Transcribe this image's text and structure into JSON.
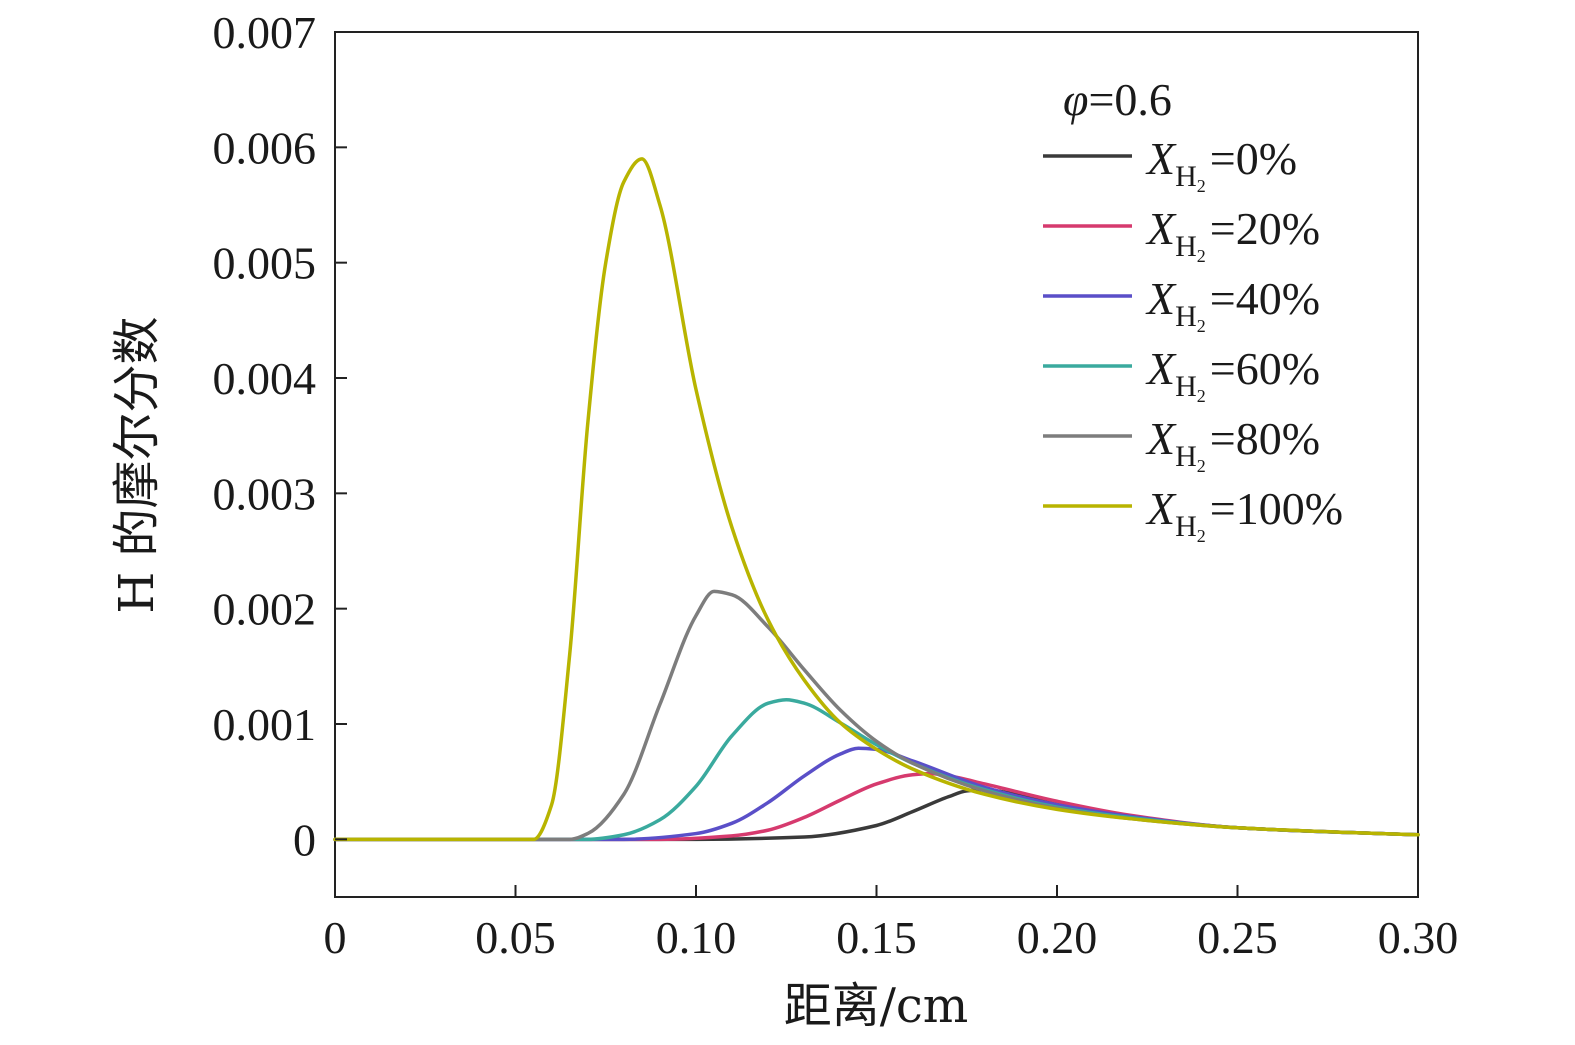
{
  "chart_data": {
    "type": "line",
    "xlabel": "距离/cm",
    "ylabel": "H 的摩尔分数",
    "xlim": [
      0,
      0.3
    ],
    "ylim": [
      -0.0005,
      0.007
    ],
    "x_ticks": [
      0,
      0.05,
      0.1,
      0.15,
      0.2,
      0.25,
      0.3
    ],
    "x_tick_labels": [
      "0",
      "0.05",
      "0.10",
      "0.15",
      "0.20",
      "0.25",
      "0.30"
    ],
    "y_ticks": [
      0,
      0.001,
      0.002,
      0.003,
      0.004,
      0.005,
      0.006,
      0.007
    ],
    "y_tick_labels": [
      "0",
      "0.001",
      "0.002",
      "0.003",
      "0.004",
      "0.005",
      "0.006",
      "0.007"
    ],
    "grid": false,
    "legend": {
      "placement": "top-right",
      "title": "φ=0.6",
      "title_symbol": "φ",
      "title_rest": "=0.6"
    },
    "series": [
      {
        "name": "X_H2=0%",
        "var": "X",
        "sub": "H",
        "sub2": "2",
        "value_text": "=0%",
        "color": "#3a3a3a",
        "x": [
          0,
          0.1,
          0.13,
          0.15,
          0.16,
          0.17,
          0.175,
          0.18,
          0.19,
          0.2,
          0.22,
          0.25,
          0.28,
          0.3
        ],
        "y": [
          0,
          0,
          2e-05,
          0.00012,
          0.00024,
          0.00037,
          0.00042,
          0.00043,
          0.00038,
          0.00031,
          0.0002,
          0.0001,
          6e-05,
          4e-05
        ]
      },
      {
        "name": "X_H2=20%",
        "var": "X",
        "sub": "H",
        "sub2": "2",
        "value_text": "=20%",
        "color": "#d63a6e",
        "x": [
          0,
          0.09,
          0.11,
          0.12,
          0.13,
          0.14,
          0.15,
          0.16,
          0.165,
          0.17,
          0.18,
          0.2,
          0.22,
          0.25,
          0.28,
          0.3
        ],
        "y": [
          0,
          0,
          3e-05,
          8e-05,
          0.00019,
          0.00034,
          0.00048,
          0.00056,
          0.00057,
          0.00055,
          0.00048,
          0.00033,
          0.00021,
          0.0001,
          6e-05,
          4e-05
        ]
      },
      {
        "name": "X_H2=40%",
        "var": "X",
        "sub": "H",
        "sub2": "2",
        "value_text": "=40%",
        "color": "#5a4fc8",
        "x": [
          0,
          0.08,
          0.1,
          0.11,
          0.12,
          0.13,
          0.14,
          0.145,
          0.15,
          0.16,
          0.18,
          0.2,
          0.22,
          0.25,
          0.28,
          0.3
        ],
        "y": [
          0,
          0,
          5e-05,
          0.00014,
          0.00032,
          0.00055,
          0.00074,
          0.00079,
          0.00078,
          0.00068,
          0.00045,
          0.0003,
          0.0002,
          0.0001,
          6e-05,
          4e-05
        ]
      },
      {
        "name": "X_H2=60%",
        "var": "X",
        "sub": "H",
        "sub2": "2",
        "value_text": "=60%",
        "color": "#3aaa9e",
        "x": [
          0,
          0.07,
          0.08,
          0.09,
          0.1,
          0.11,
          0.12,
          0.125,
          0.13,
          0.14,
          0.15,
          0.16,
          0.18,
          0.2,
          0.22,
          0.25,
          0.28,
          0.3
        ],
        "y": [
          0,
          0,
          4e-05,
          0.00017,
          0.00046,
          0.0009,
          0.00118,
          0.00121,
          0.00118,
          0.00101,
          0.00082,
          0.00066,
          0.00043,
          0.00028,
          0.00019,
          0.0001,
          6e-05,
          4e-05
        ]
      },
      {
        "name": "X_H2=80%",
        "var": "X",
        "sub": "H",
        "sub2": "2",
        "value_text": "=80%",
        "color": "#7d7d7d",
        "x": [
          0,
          0.065,
          0.07,
          0.08,
          0.09,
          0.1,
          0.105,
          0.11,
          0.12,
          0.13,
          0.14,
          0.15,
          0.16,
          0.18,
          0.2,
          0.22,
          0.25,
          0.28,
          0.3
        ],
        "y": [
          0,
          0,
          5e-05,
          0.00039,
          0.00117,
          0.00194,
          0.00215,
          0.00212,
          0.00184,
          0.00147,
          0.00112,
          0.00085,
          0.00066,
          0.00042,
          0.00027,
          0.00018,
          0.0001,
          6e-05,
          4e-05
        ]
      },
      {
        "name": "X_H2=100%",
        "var": "X",
        "sub": "H",
        "sub2": "2",
        "value_text": "=100%",
        "color": "#b8b400",
        "x": [
          0,
          0.055,
          0.06,
          0.065,
          0.07,
          0.075,
          0.08,
          0.085,
          0.09,
          0.1,
          0.11,
          0.12,
          0.13,
          0.14,
          0.15,
          0.16,
          0.18,
          0.2,
          0.22,
          0.25,
          0.28,
          0.3
        ],
        "y": [
          0,
          0,
          0.0003,
          0.0016,
          0.0036,
          0.005,
          0.0057,
          0.0059,
          0.0055,
          0.0039,
          0.0027,
          0.0019,
          0.00138,
          0.00101,
          0.00078,
          0.00061,
          0.00039,
          0.00026,
          0.00018,
          0.0001,
          6e-05,
          4e-05
        ]
      }
    ]
  }
}
